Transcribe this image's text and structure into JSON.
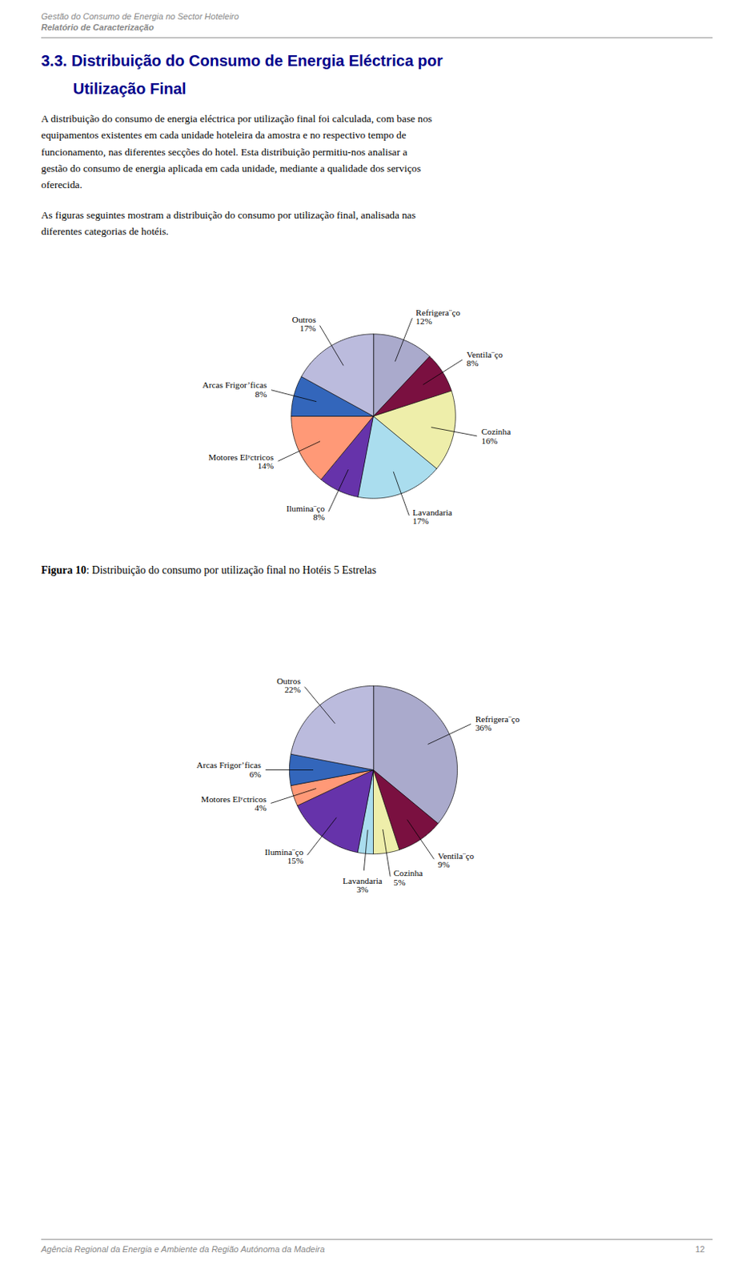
{
  "header": [
    "Gestão do Consumo de Energia no Sector Hoteleiro",
    "Relatório de Caracterização"
  ],
  "section_title": [
    "3.3.  Distribuição do Consumo de Energia Eléctrica por",
    "Utilização Final"
  ],
  "body": [
    [
      "A distribuição do consumo de energia eléctrica por utilização final foi calculada, com base nos",
      "equipamentos existentes em cada unidade hoteleira da amostra e no respectivo tempo de",
      "funcionamento, nas diferentes secções do hotel. Esta distribuição permitiu-nos analisar a",
      "gestão do consumo de energia aplicada em cada unidade, mediante a qualidade dos serviços",
      "oferecida."
    ],
    [
      "As figuras seguintes mostram a distribuição do consumo por utilização final, analisada nas",
      "diferentes categorias de hotéis."
    ]
  ],
  "footer": {
    "text": "Agência Regional da Energia e Ambiente da Região Autónoma da Madeira",
    "page": "12"
  },
  "chart_data": [
    {
      "type": "pie",
      "categories": [
        "Refrigera¨ço",
        "Ventila¨ço",
        "Cozinha",
        "Lavandaria",
        "Ilumina¨ço",
        "Motores Elʸctricos",
        "Arcas Frigor’ficas",
        "Outros"
      ],
      "values": [
        12,
        8,
        16,
        17,
        8,
        14,
        8,
        17
      ],
      "value_labels": [
        "12%",
        "8%",
        "16%",
        "17%",
        "8%",
        "14%",
        "8%",
        "17%"
      ],
      "colors": [
        "#aaaacc",
        "#7a1040",
        "#eeeeaa",
        "#aaddee",
        "#6633aa",
        "#ff9977",
        "#3366bb",
        "#bbbbdd"
      ],
      "data_labels": true,
      "caption": [
        "Figura 10",
        ": Distribuição do consumo por utilização final no Hotéis 5 Estrelas"
      ]
    },
    {
      "type": "pie",
      "categories": [
        "Refrigera¨ço",
        "Ventila¨ço",
        "Cozinha",
        "Lavandaria",
        "Ilumina¨ço",
        "Motores Elʸctricos",
        "Arcas Frigor’ficas",
        "Outros"
      ],
      "values": [
        36,
        9,
        5,
        3,
        15,
        4,
        6,
        22
      ],
      "value_labels": [
        "36%",
        "9%",
        "5%",
        "3%",
        "15%",
        "4%",
        "6%",
        "22%"
      ],
      "colors": [
        "#aaaacc",
        "#7a1040",
        "#eeeeaa",
        "#aaddee",
        "#6633aa",
        "#ff9977",
        "#3366bb",
        "#bbbbdd"
      ],
      "data_labels": true
    }
  ]
}
